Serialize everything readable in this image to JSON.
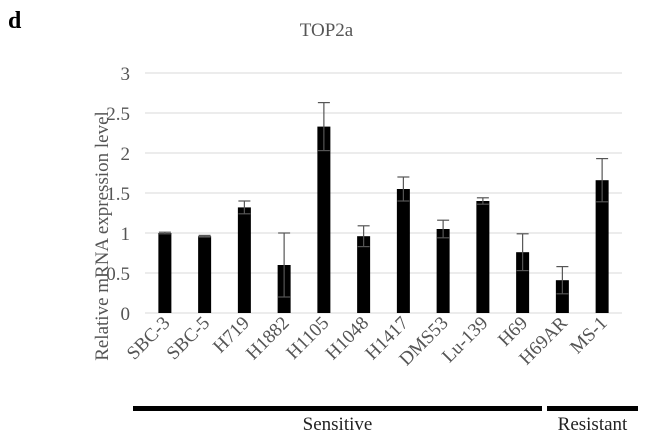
{
  "panel_letter": "d",
  "chart_data": {
    "type": "bar",
    "title": "TOP2a",
    "xlabel": "",
    "ylabel": "Relative mRNA expression level",
    "ylim": [
      0,
      3
    ],
    "yticks": [
      "0",
      "0.5",
      "1",
      "1.5",
      "2",
      "2.5",
      "3"
    ],
    "categories": [
      "SBC-3",
      "SBC-5",
      "H719",
      "H1882",
      "H1105",
      "H1048",
      "H1417",
      "DMS53",
      "Lu-139",
      "H69",
      "H69AR",
      "MS-1"
    ],
    "values": [
      1.0,
      0.96,
      1.32,
      0.6,
      2.33,
      0.96,
      1.55,
      1.05,
      1.4,
      0.76,
      0.41,
      1.66
    ],
    "error": [
      0.01,
      0.01,
      0.08,
      0.4,
      0.3,
      0.13,
      0.15,
      0.11,
      0.04,
      0.23,
      0.17,
      0.27
    ],
    "grid": true,
    "bar_color": "#000000",
    "gridline_color": "#d9d9d9",
    "groups": [
      {
        "label": "Sensitive",
        "start": 0,
        "end": 9
      },
      {
        "label": "Resistant",
        "start": 10,
        "end": 11
      }
    ]
  }
}
